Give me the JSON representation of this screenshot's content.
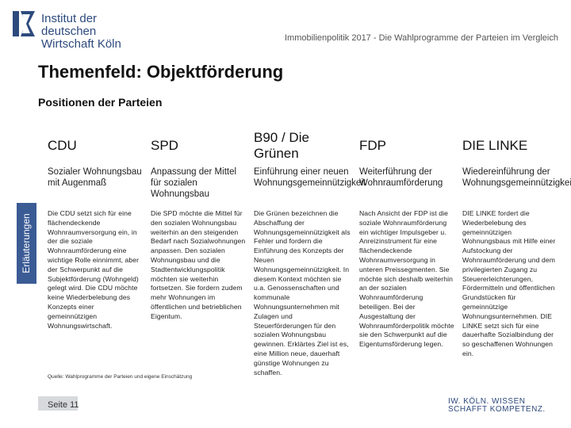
{
  "header": {
    "logo_line1": "Institut der deutschen",
    "logo_line2": "Wirtschaft Köln",
    "subtitle": "Immobilienpolitik 2017 - Die Wahlprogramme der Parteien im Vergleich"
  },
  "page_title": "Themenfeld: Objektförderung",
  "section_title": "Positionen der Parteien",
  "side_label": "Erläuterungen",
  "columns": [
    {
      "party": "CDU",
      "position": "Sozialer Wohnungsbau mit Augenmaß",
      "explanation": "Die CDU setzt sich für eine flächendeckende Wohnraumversorgung ein, in der die soziale Wohnraumförderung eine wichtige Rolle einnimmt, aber der Schwerpunkt auf die Subjektförderung (Wohngeld) gelegt wird. Die CDU möchte keine Wiederbelebung des Konzepts einer gemeinnützigen Wohnungswirtschaft."
    },
    {
      "party": "SPD",
      "position": "Anpassung der Mittel für sozialen Wohnungsbau",
      "explanation": "Die SPD möchte die Mittel für den sozialen Wohnungsbau weiterhin an den steigenden Bedarf nach Sozialwohnungen anpassen. Den sozialen Wohnungsbau und die Stadtentwicklungspolitik möchten sie weiterhin fortsetzen. Sie fordern zudem mehr Wohnungen im öffentlichen und betrieblichen Eigentum."
    },
    {
      "party": "B90 / Die Grünen",
      "position": "Einführung einer neuen Wohnungsgemeinnützigkeit",
      "explanation": "Die Grünen bezeichnen die Abschaffung der Wohnungsgemeinnützigkeit als Fehler und fordern die Einführung des Konzepts der Neuen Wohnungsgemeinnützigkeit. In diesem Kontext möchten sie u.a. Genossenschaften und kommunale Wohnungsunternehmen mit Zulagen und Steuerförderungen für den sozialen Wohnungsbau gewinnen. Erklärtes Ziel ist es, eine Million neue, dauerhaft günstige Wohnungen zu schaffen."
    },
    {
      "party": "FDP",
      "position": "Weiterführung der Wohnraumförderung",
      "explanation": "Nach Ansicht der FDP ist die soziale Wohnraumförderung ein wichtiger Impulsgeber u. Anreizinstrument für eine flächendeckende Wohnraumversorgung in unteren Preissegmenten. Sie möchte sich deshalb weiterhin an der sozialen Wohnraumförderung beteiligen. Bei der Ausgestaltung der Wohnraumförderpolitik möchte sie den Schwerpunkt auf die Eigentumsförderung legen."
    },
    {
      "party": "DIE LINKE",
      "position": "Wiedereinführung der Wohnungsgemeinnützigkeit",
      "explanation": "DIE LINKE fordert die Wiederbelebung des gemeinnützigen Wohnungsbaus mit Hilfe einer Aufstockung der Wohnraumförderung und dem privilegierten Zugang zu Steuererleichterungen, Fördermitteln und öffentlichen Grundstücken für gemeinnützige Wohnungsunternehmen. DIE LINKE setzt sich für eine dauerhafte Sozialbindung der so geschaffenen Wohnungen ein."
    }
  ],
  "source": "Quelle: Wahlprogramme der Parteien und eigene Einschätzung",
  "slide_number": "Seite 11",
  "footer": {
    "brand_line1": "IW. KÖLN. WISSEN",
    "brand_line2": "SCHAFFT KOMPETENZ."
  }
}
